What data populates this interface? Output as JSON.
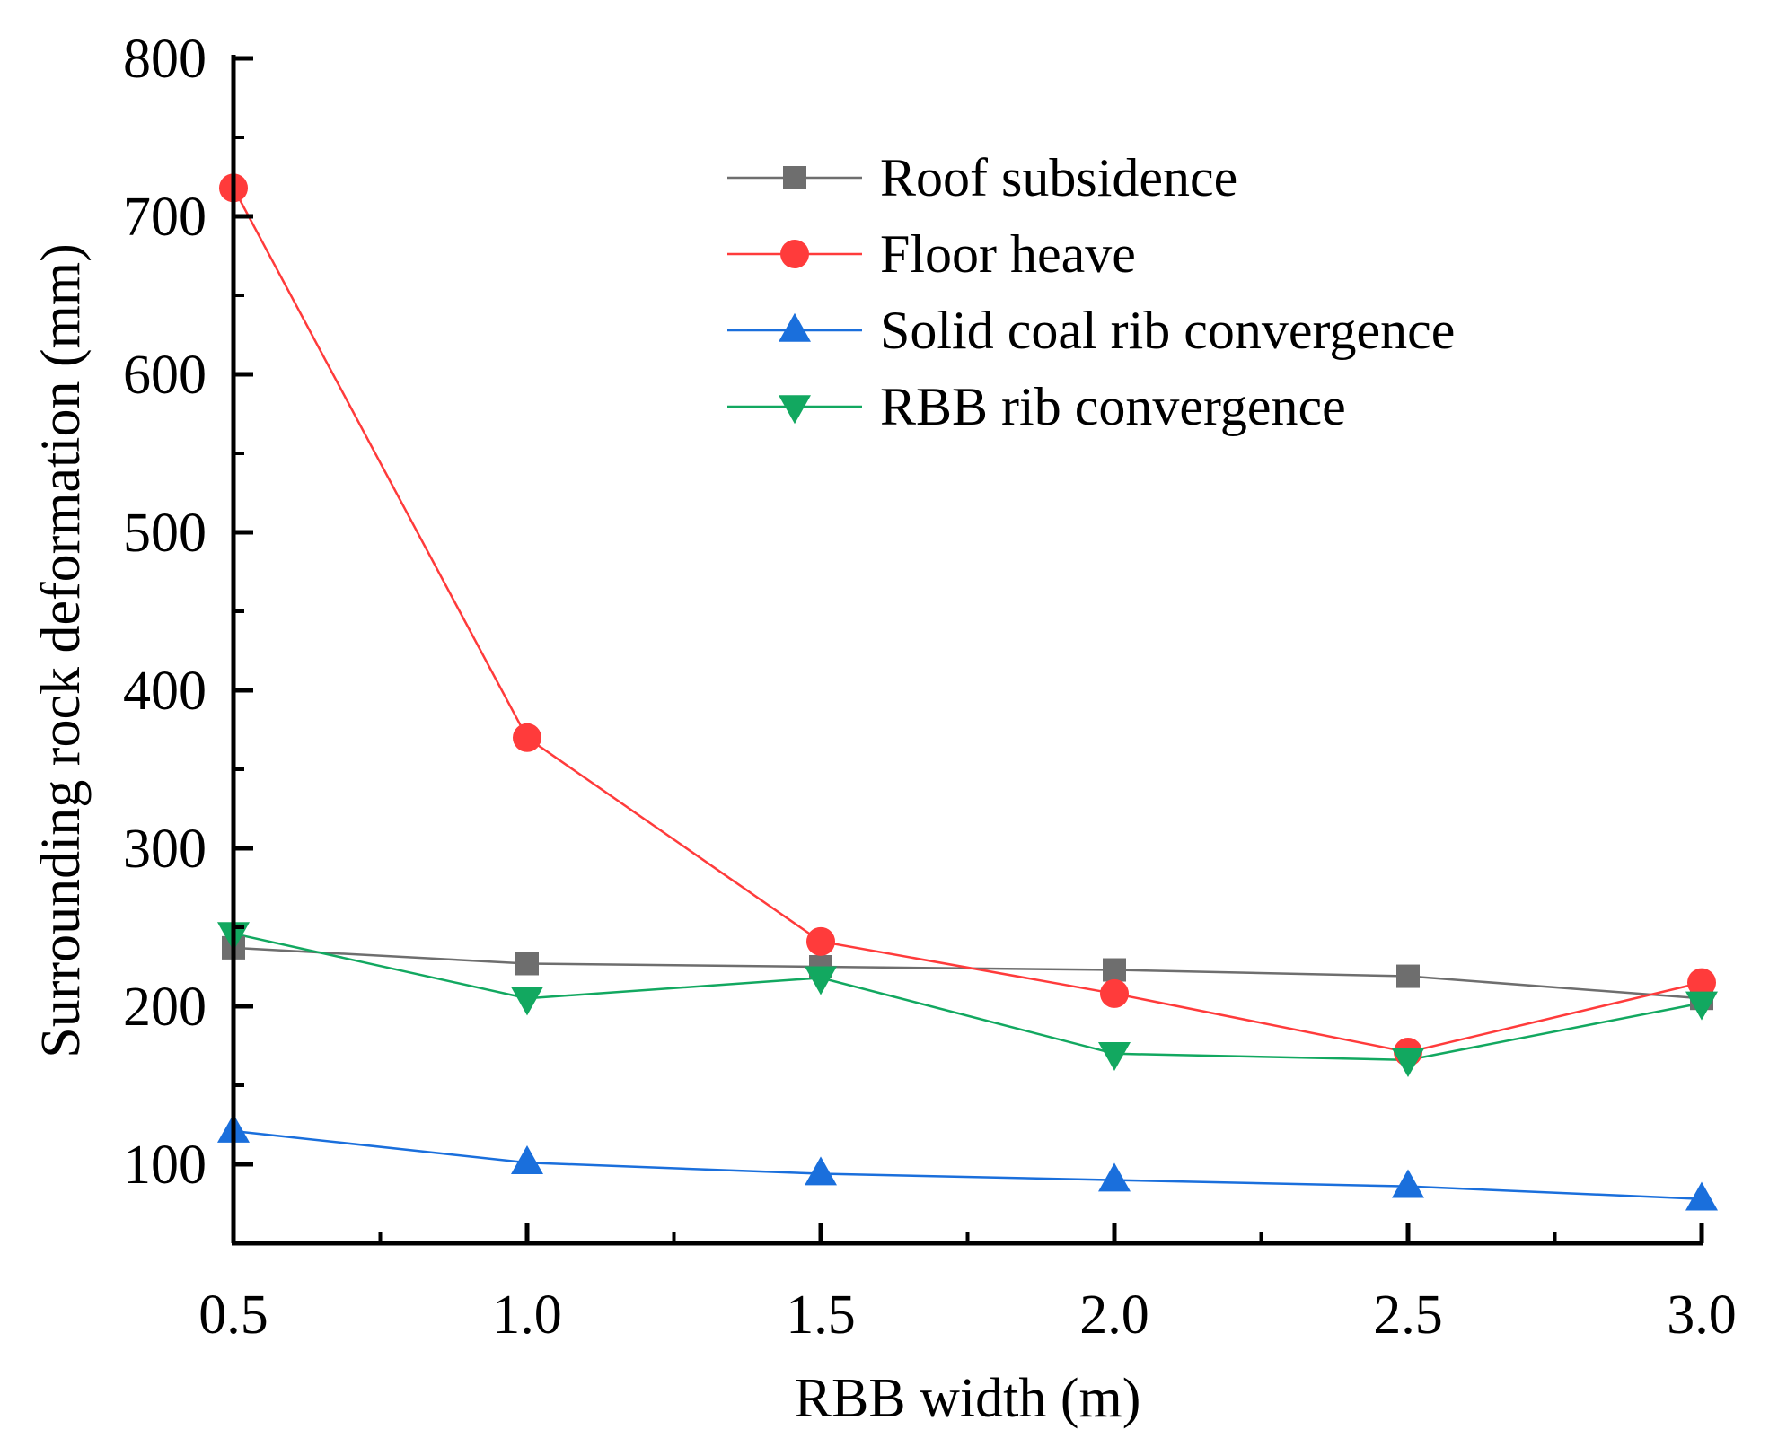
{
  "chart_data": {
    "type": "line",
    "title": "",
    "xlabel": "RBB width (m)",
    "ylabel": "Surrounding rock deformation (mm)",
    "x": [
      0.5,
      1.0,
      1.5,
      2.0,
      2.5,
      3.0
    ],
    "x_tick_labels": [
      "0.5",
      "1.0",
      "1.5",
      "2.0",
      "2.5",
      "3.0"
    ],
    "xlim": [
      0.5,
      3.0
    ],
    "ylim": [
      50,
      800
    ],
    "y_ticks": [
      100,
      200,
      300,
      400,
      500,
      600,
      700,
      800
    ],
    "y_tick_labels": [
      "100",
      "200",
      "300",
      "400",
      "500",
      "600",
      "700",
      "800"
    ],
    "grid": false,
    "legend_position": "top-right",
    "series": [
      {
        "name": "Roof subsidence",
        "color": "#6e6e6e",
        "marker": "square",
        "values": [
          237,
          227,
          225,
          223,
          219,
          205
        ]
      },
      {
        "name": "Floor heave",
        "color": "#ff3b3b",
        "marker": "circle",
        "values": [
          718,
          370,
          241,
          208,
          171,
          215
        ]
      },
      {
        "name": "Solid coal rib convergence",
        "color": "#1a6fdc",
        "marker": "triangle-up",
        "values": [
          121,
          101,
          94,
          90,
          86,
          78
        ]
      },
      {
        "name": "RBB rib convergence",
        "color": "#12a860",
        "marker": "triangle-down",
        "values": [
          246,
          205,
          218,
          170,
          166,
          202
        ]
      }
    ]
  }
}
